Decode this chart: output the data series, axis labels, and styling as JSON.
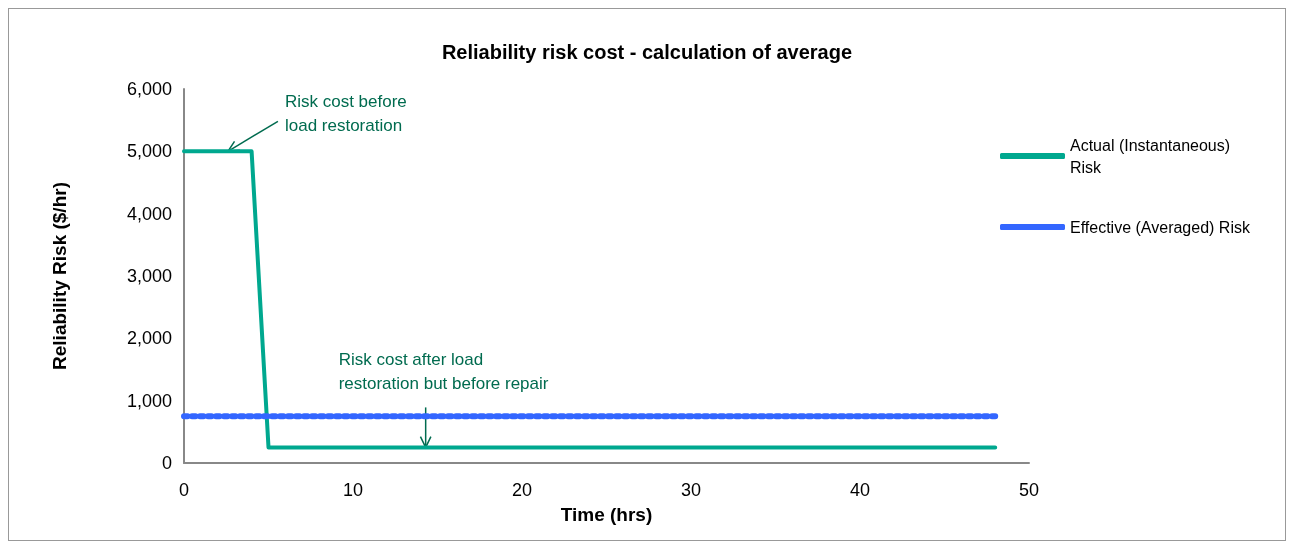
{
  "chart_data": {
    "type": "line",
    "title": "Reliability risk cost - calculation of average",
    "xlabel": "Time (hrs)",
    "ylabel": "Reliability Risk ($/hr)",
    "xlim": [
      0,
      50
    ],
    "xticks": [
      0,
      10,
      20,
      30,
      40,
      50
    ],
    "ylim": [
      0,
      6000
    ],
    "yticks": [
      {
        "value": 0,
        "label": "0"
      },
      {
        "value": 1000,
        "label": "1,000"
      },
      {
        "value": 2000,
        "label": "2,000"
      },
      {
        "value": 3000,
        "label": "3,000"
      },
      {
        "value": 4000,
        "label": "4,000"
      },
      {
        "value": 5000,
        "label": "5,000"
      },
      {
        "value": 6000,
        "label": "6,000"
      }
    ],
    "series": [
      {
        "name": "Actual (Instantaneous) Risk",
        "color": "#00a88f",
        "x": [
          0,
          4,
          5,
          48
        ],
        "values": [
          5000,
          5000,
          250,
          250
        ],
        "line_style": "solid"
      },
      {
        "name": "Effective (Averaged) Risk",
        "color": "#3366ff",
        "x": [
          0,
          48
        ],
        "values": [
          750,
          750
        ],
        "line_style": "dashed"
      }
    ],
    "annotations": [
      {
        "text": "Risk cost before\nload restoration",
        "x": 2.6,
        "y": 5000
      },
      {
        "text": "Risk cost after load\nrestoration but before repair",
        "x": 14.3,
        "y": 250
      }
    ],
    "marker": "none",
    "grid": false,
    "legend": "right"
  }
}
